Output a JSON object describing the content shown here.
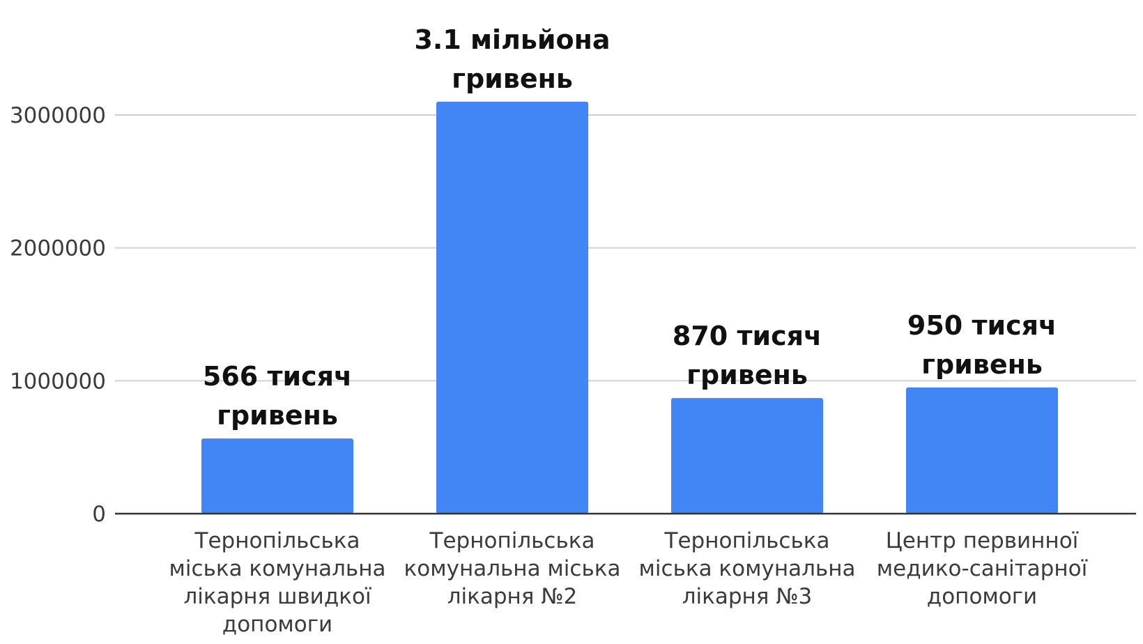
{
  "chart_data": {
    "type": "bar",
    "categories": [
      [
        "Тернопільська",
        "міська комунальна",
        "лікарня швидкої",
        "допомоги"
      ],
      [
        "Тернопільська",
        "комунальна міська",
        "лікарня №2"
      ],
      [
        "Тернопільська",
        "міська комунальна",
        "лікарня №3"
      ],
      [
        "Центр первинної",
        "медико-санітарної",
        "допомоги"
      ]
    ],
    "values": [
      566000,
      3100000,
      870000,
      950000
    ],
    "data_labels": [
      [
        "566 тисяч",
        "гривень"
      ],
      [
        "3.1 мільйона",
        "гривень"
      ],
      [
        "870 тисяч",
        "гривень"
      ],
      [
        "950  тисяч",
        "гривень"
      ]
    ],
    "y_ticks": [
      "0",
      "1000000",
      "2000000",
      "3000000"
    ],
    "y_tick_values": [
      0,
      1000000,
      2000000,
      3000000
    ],
    "ylim": [
      0,
      3400000
    ],
    "grid": true,
    "bar_color": "#4285f4",
    "title": "",
    "xlabel": "",
    "ylabel": ""
  }
}
